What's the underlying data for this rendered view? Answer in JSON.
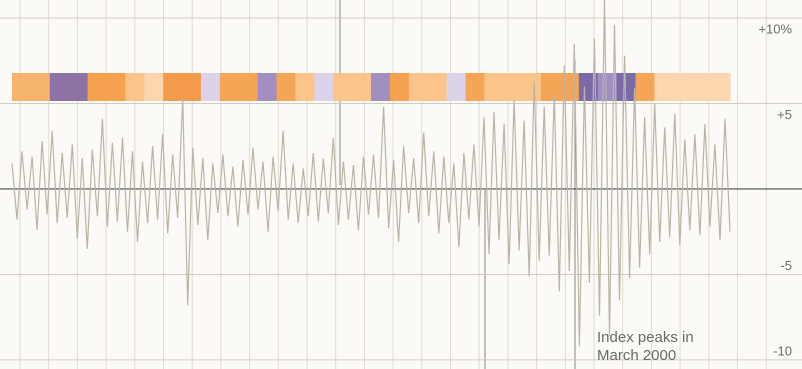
{
  "chart_data": {
    "type": "line",
    "annotation": [
      "Index peaks in",
      "March 2000"
    ],
    "ylim": [
      -10.53,
      11.05
    ],
    "yticks": [
      {
        "value": 10,
        "label": "+10%"
      },
      {
        "value": 5,
        "label": "+5"
      },
      -5,
      -10
    ],
    "grid": true,
    "band_colors": [
      "#f6b36c",
      "#f6b36c",
      "#8e72a6",
      "#8e72a6",
      "#f5a14f",
      "#f5a14f",
      "#fac48a",
      "#fbd6ae",
      "#f39b4a",
      "#f39b4a",
      "#dcd3ea",
      "#f5a556",
      "#f5a556",
      "#a08fc0",
      "#f5a556",
      "#fac48a",
      "#dcd3ea",
      "#fac48a",
      "#fac48a",
      "#a08fc0",
      "#f5a14f",
      "#fac48a",
      "#fac48a",
      "#dcd3ea",
      "#f5a556",
      "#fac48a",
      "#fac48a",
      "#fac48a",
      "#f5a556",
      "#f5a556",
      "#7a6aa8",
      "#a08fc0",
      "#7a6aa8",
      "#f5a556",
      "#fbd6ae",
      "#fbd6ae",
      "#fbd6ae",
      "#fbd6ae"
    ],
    "series": [
      {
        "color": "#b9b5a5",
        "values": [
          1.5,
          -1.8,
          2.2,
          -1.2,
          1.9,
          -2.4,
          2.8,
          -1.5,
          3.4,
          -2.0,
          2.1,
          -1.7,
          2.6,
          -2.9,
          1.8,
          -3.5,
          2.3,
          -1.6,
          4.1,
          -2.2,
          2.7,
          -1.9,
          3.0,
          -2.5,
          2.2,
          -3.1,
          1.6,
          -2.0,
          2.5,
          -1.8,
          3.2,
          -2.6,
          2.0,
          -1.7,
          5.3,
          -6.8,
          2.4,
          -2.1,
          1.8,
          -3.0,
          1.5,
          -1.4,
          2.0,
          -1.6,
          1.3,
          -2.2,
          1.7,
          -1.5,
          2.4,
          -1.2,
          1.6,
          -2.5,
          1.9,
          -1.3,
          3.4,
          -1.8,
          1.5,
          -2.0,
          1.2,
          -1.6,
          2.1,
          -1.9,
          1.8,
          -1.4,
          3.0,
          -2.1,
          1.6,
          -1.8,
          1.4,
          -2.4,
          1.9,
          -1.5,
          2.0,
          -1.7,
          4.8,
          -2.3,
          1.7,
          -3.1,
          2.5,
          -1.4,
          1.8,
          -2.0,
          3.3,
          -1.6,
          2.2,
          -2.6,
          1.9,
          -2.0,
          1.5,
          -3.4,
          2.1,
          -1.8,
          2.6,
          -2.2,
          4.2,
          -3.8,
          4.5,
          -3.0,
          3.8,
          -4.4,
          5.2,
          -3.6,
          4.0,
          -5.1,
          6.3,
          -4.2,
          4.8,
          -3.9,
          5.5,
          -6.0,
          7.2,
          -4.8,
          8.5,
          -9.2,
          6.0,
          -5.5,
          8.8,
          -7.4,
          11.2,
          -8.6,
          9.6,
          -6.5,
          7.8,
          -5.2,
          5.9,
          -4.6,
          4.2,
          -3.8,
          5.0,
          -3.1,
          3.6,
          -2.8,
          4.4,
          -3.3,
          2.9,
          -2.4,
          3.2,
          -2.7,
          3.8,
          -2.2,
          2.6,
          -3.0,
          4.1,
          -2.5
        ]
      }
    ]
  }
}
